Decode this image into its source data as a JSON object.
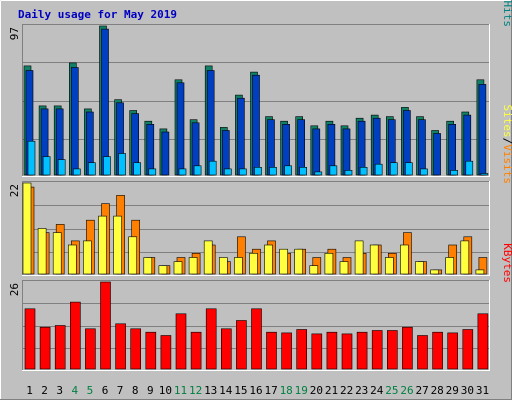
{
  "chart_data": {
    "type": "bar",
    "title": "Daily usage for May 2019",
    "colors": {
      "background": "#c0c0c0",
      "title": "#0000c0",
      "pages": "#00c0ff",
      "files": "#0040c0",
      "hits": "#008080",
      "hits_bar": "#128066",
      "sites": "#ffff40",
      "visits": "#ff8000",
      "kbytes": "#ff0000",
      "weekend_day": "#008040",
      "weekday": "#000000"
    },
    "categories": [
      "1",
      "2",
      "3",
      "4",
      "5",
      "6",
      "7",
      "8",
      "9",
      "10",
      "11",
      "12",
      "13",
      "14",
      "15",
      "16",
      "17",
      "18",
      "19",
      "20",
      "21",
      "22",
      "23",
      "24",
      "25",
      "26",
      "27",
      "28",
      "29",
      "30",
      "31"
    ],
    "weekend_days": [
      "4",
      "5",
      "11",
      "12",
      "18",
      "19",
      "25",
      "26"
    ],
    "panels": [
      {
        "id": "hits-files-pages",
        "max_label": "97",
        "ymax": 97,
        "legend": [
          "Pages",
          "/",
          "Files",
          "/",
          "Hits"
        ],
        "series": [
          {
            "name": "Hits",
            "values": [
              71,
              45,
              45,
              73,
              43,
              97,
              49,
              42,
              35,
              30,
              62,
              36,
              71,
              31,
              52,
              67,
              38,
              35,
              38,
              32,
              35,
              32,
              37,
              39,
              38,
              44,
              38,
              29,
              35,
              41,
              62
            ]
          },
          {
            "name": "Files",
            "values": [
              68,
              43,
              43,
              70,
              41,
              95,
              47,
              40,
              33,
              28,
              60,
              34,
              68,
              29,
              50,
              65,
              36,
              33,
              36,
              30,
              33,
              30,
              35,
              37,
              36,
              42,
              36,
              27,
              33,
              39,
              59
            ]
          },
          {
            "name": "Pages",
            "values": [
              22,
              12,
              10,
              4,
              8,
              12,
              14,
              8,
              4,
              0,
              4,
              6,
              9,
              4,
              4,
              5,
              5,
              6,
              5,
              2,
              6,
              3,
              5,
              7,
              8,
              8,
              4,
              0,
              3,
              9,
              1
            ]
          }
        ]
      },
      {
        "id": "visits-sites",
        "max_label": "22",
        "ymax": 22,
        "legend": [
          "Sites",
          "/",
          "Visits"
        ],
        "series": [
          {
            "name": "Visits",
            "values": [
              21,
              10,
              12,
              8,
              13,
              17,
              19,
              13,
              4,
              2,
              4,
              5,
              7,
              3,
              9,
              6,
              8,
              5,
              6,
              4,
              6,
              4,
              5,
              7,
              5,
              10,
              3,
              1,
              7,
              9,
              4
            ]
          },
          {
            "name": "Sites",
            "values": [
              22,
              11,
              10,
              7,
              8,
              14,
              14,
              9,
              4,
              2,
              3,
              4,
              8,
              4,
              4,
              5,
              7,
              6,
              6,
              2,
              5,
              3,
              8,
              7,
              4,
              7,
              3,
              1,
              4,
              8,
              1
            ]
          }
        ]
      },
      {
        "id": "kbytes",
        "max_label": "26",
        "ymax": 26,
        "legend": [
          "KBytes"
        ],
        "series": [
          {
            "name": "KBytes",
            "values": [
              18,
              12.5,
              13,
              20,
              12,
              26,
              13.5,
              12,
              11,
              10,
              16.5,
              11,
              18,
              12,
              14.5,
              18,
              11,
              10.8,
              11.8,
              10.5,
              11,
              10.5,
              11,
              11.5,
              11.5,
              12.5,
              10,
              11,
              10.8,
              11.8,
              16.5
            ]
          }
        ]
      }
    ]
  }
}
